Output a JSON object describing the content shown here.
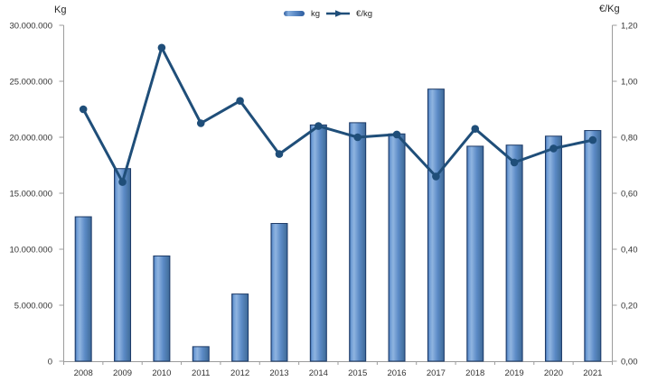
{
  "chart_data": {
    "type": "combo-bar-line",
    "title": "",
    "categories": [
      "2008",
      "2009",
      "2010",
      "2011",
      "2012",
      "2013",
      "2014",
      "2015",
      "2016",
      "2017",
      "2018",
      "2019",
      "2020",
      "2021"
    ],
    "series": [
      {
        "name": "kg",
        "type": "bar",
        "axis": "left",
        "values": [
          12900000,
          17200000,
          9400000,
          1300000,
          6000000,
          12300000,
          21100000,
          21300000,
          20300000,
          24300000,
          19200000,
          19300000,
          20100000,
          20600000
        ]
      },
      {
        "name": "€/kg",
        "type": "line",
        "axis": "right",
        "values": [
          0.9,
          0.64,
          1.12,
          0.85,
          0.93,
          0.74,
          0.84,
          0.8,
          0.81,
          0.66,
          0.83,
          0.71,
          0.76,
          0.79
        ]
      }
    ],
    "left_axis": {
      "title": "Kg",
      "min": 0,
      "max": 30000000,
      "tick_labels": [
        "30.000.000",
        "25.000.000",
        "20.000.000",
        "15.000.000",
        "10.000.000",
        "5.000.000",
        "0"
      ]
    },
    "right_axis": {
      "title": "€/Kg",
      "min": 0,
      "max": 1.2,
      "tick_labels": [
        "1,20",
        "1,00",
        "0,80",
        "0,60",
        "0,40",
        "0,20",
        "0,00"
      ]
    },
    "legend": {
      "position": "top-center",
      "entries": [
        "kg",
        "€/kg"
      ]
    },
    "grid": "off",
    "colors": {
      "bar_fill": "#5b8ac6",
      "bar_highlight": "#8fb4e0",
      "bar_edge_dark": "#2d5c9e",
      "bar_border": "#1d3a66",
      "line": "#1f4e79",
      "axis": "#9c9c9c",
      "text": "#333333"
    }
  }
}
